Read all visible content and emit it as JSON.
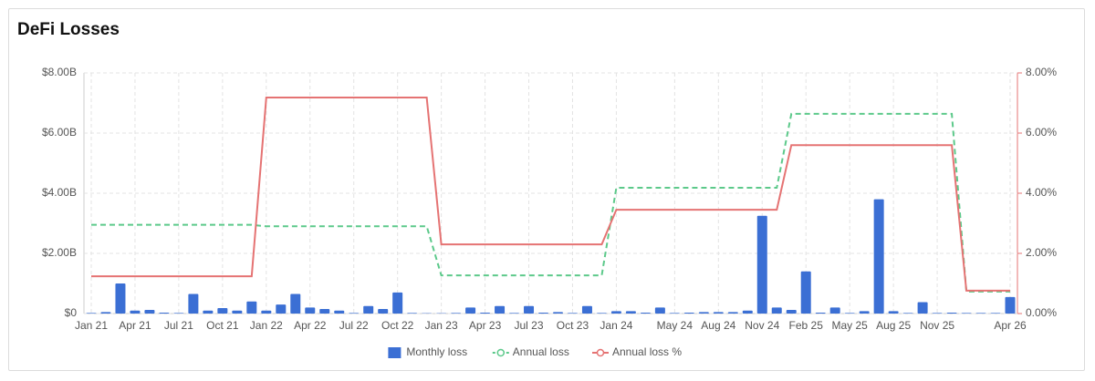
{
  "title": "DeFi Losses",
  "chart_data": {
    "type": "bar",
    "categories": [
      "Jan 21",
      null,
      null,
      "Apr 21",
      null,
      null,
      "Jul 21",
      null,
      null,
      "Oct 21",
      null,
      null,
      "Jan 22",
      null,
      null,
      "Apr 22",
      null,
      null,
      "Jul 22",
      null,
      null,
      "Oct 22",
      null,
      null,
      "Jan 23",
      null,
      null,
      "Apr 23",
      null,
      null,
      "Jul 23",
      null,
      null,
      "Oct 23",
      null,
      null,
      "Jan 24",
      null,
      null,
      null,
      "May 24",
      null,
      null,
      "Aug 24",
      null,
      null,
      "Nov 24",
      null,
      null,
      "Feb 25",
      null,
      null,
      "May 25",
      null,
      null,
      "Aug 25",
      null,
      null,
      "Nov 25",
      null,
      null,
      null,
      null,
      "Apr 26"
    ],
    "series": [
      {
        "name": "Monthly loss",
        "type": "bar",
        "color": "#3b6fd4",
        "values": [
          0.02,
          0.05,
          1.0,
          0.1,
          0.12,
          0.03,
          0.02,
          0.65,
          0.1,
          0.18,
          0.1,
          0.4,
          0.1,
          0.3,
          0.65,
          0.2,
          0.15,
          0.1,
          0.02,
          0.25,
          0.15,
          0.7,
          0.02,
          0.01,
          0.01,
          0.02,
          0.2,
          0.03,
          0.25,
          0.02,
          0.25,
          0.03,
          0.05,
          0.02,
          0.25,
          0.02,
          0.08,
          0.08,
          0.03,
          0.2,
          0.02,
          0.03,
          0.05,
          0.05,
          0.05,
          0.1,
          3.25,
          0.2,
          0.12,
          1.4,
          0.03,
          0.2,
          0.02,
          0.08,
          3.8,
          0.08,
          0.02,
          0.38,
          0.02,
          0.03,
          0.02,
          0.02,
          0.02,
          0.55
        ]
      },
      {
        "name": "Annual loss",
        "type": "line",
        "dashed": true,
        "color": "#5cc98a",
        "values": [
          2.95,
          2.95,
          2.95,
          2.95,
          2.95,
          2.95,
          2.95,
          2.95,
          2.95,
          2.95,
          2.95,
          2.95,
          2.9,
          2.9,
          2.9,
          2.9,
          2.9,
          2.9,
          2.9,
          2.9,
          2.9,
          2.9,
          2.9,
          2.9,
          1.27,
          1.27,
          1.27,
          1.27,
          1.27,
          1.27,
          1.27,
          1.27,
          1.27,
          1.27,
          1.27,
          1.27,
          4.18,
          4.18,
          4.18,
          4.18,
          4.18,
          4.18,
          4.18,
          4.18,
          4.18,
          4.18,
          4.18,
          4.18,
          6.64,
          6.64,
          6.64,
          6.64,
          6.64,
          6.64,
          6.64,
          6.64,
          6.64,
          6.64,
          6.64,
          6.64,
          0.73,
          0.73,
          0.73,
          0.73
        ]
      },
      {
        "name": "Annual loss %",
        "type": "line",
        "axis": "y2",
        "color": "#e57373",
        "values": [
          1.24,
          1.24,
          1.24,
          1.24,
          1.24,
          1.24,
          1.24,
          1.24,
          1.24,
          1.24,
          1.24,
          1.24,
          7.18,
          7.18,
          7.18,
          7.18,
          7.18,
          7.18,
          7.18,
          7.18,
          7.18,
          7.18,
          7.18,
          7.18,
          2.3,
          2.3,
          2.3,
          2.3,
          2.3,
          2.3,
          2.3,
          2.3,
          2.3,
          2.3,
          2.3,
          2.3,
          3.45,
          3.45,
          3.45,
          3.45,
          3.45,
          3.45,
          3.45,
          3.45,
          3.45,
          3.45,
          3.45,
          3.45,
          5.6,
          5.6,
          5.6,
          5.6,
          5.6,
          5.6,
          5.6,
          5.6,
          5.6,
          5.6,
          5.6,
          5.6,
          0.76,
          0.76,
          0.76,
          0.76
        ]
      }
    ],
    "ylim": [
      0,
      8
    ],
    "yticks": [
      {
        "value": 0,
        "label": "$0"
      },
      {
        "value": 2,
        "label": "$2.00B"
      },
      {
        "value": 4,
        "label": "$4.00B"
      },
      {
        "value": 6,
        "label": "$6.00B"
      },
      {
        "value": 8,
        "label": "$8.00B"
      }
    ],
    "y2lim": [
      0,
      8
    ],
    "y2ticks": [
      {
        "value": 0,
        "label": "0.00%"
      },
      {
        "value": 2,
        "label": "2.00%"
      },
      {
        "value": 4,
        "label": "4.00%"
      },
      {
        "value": 6,
        "label": "6.00%"
      },
      {
        "value": 8,
        "label": "8.00%"
      }
    ],
    "y2color": "#e57373",
    "grid": true,
    "legend": "bottom"
  }
}
